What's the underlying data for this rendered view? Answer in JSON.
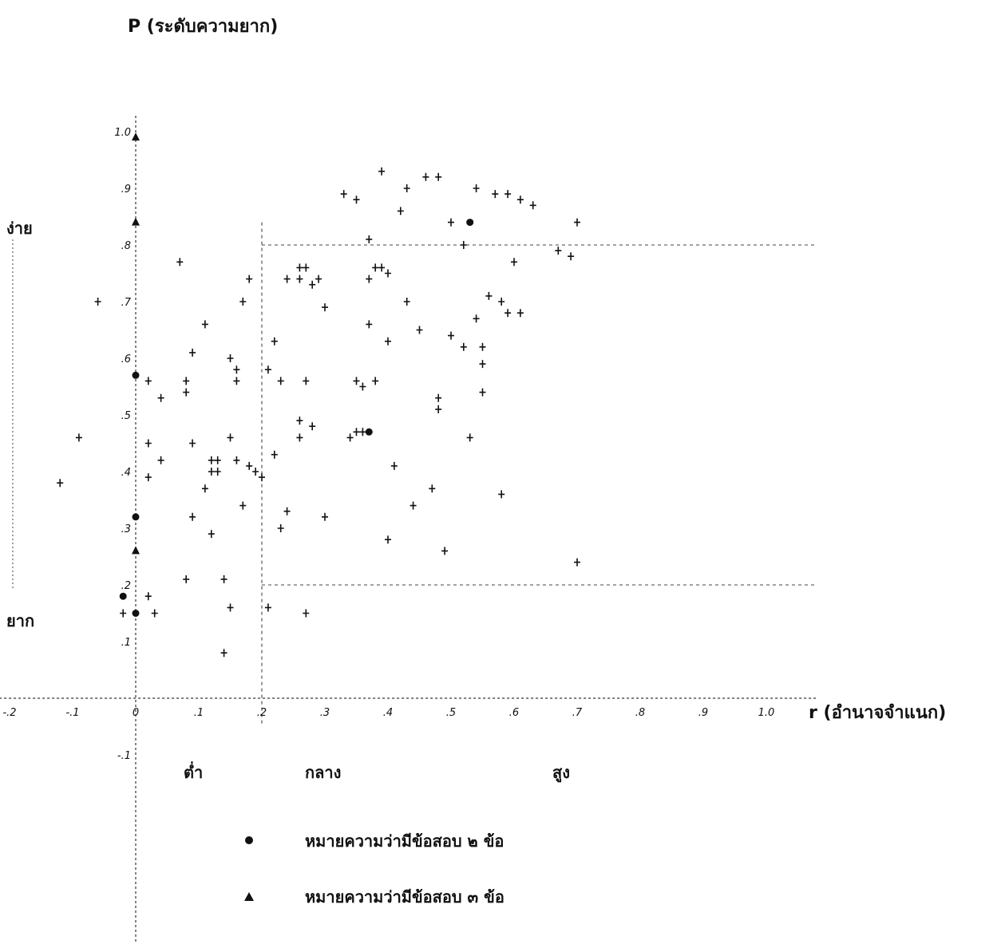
{
  "chart_data": {
    "type": "scatter",
    "xlabel": "r (อำนาจจำแนก)",
    "ylabel": "P (ระดับความยาก)",
    "x_ticks": [
      "-.2",
      "-.1",
      "0",
      ".1",
      ".2",
      ".3",
      ".4",
      ".5",
      ".6",
      ".7",
      ".8",
      ".9",
      "1.0"
    ],
    "y_ticks": [
      "1.0",
      ".9",
      ".8",
      ".7",
      ".6",
      ".5",
      ".4",
      ".3",
      ".2",
      ".1",
      "-.1"
    ],
    "xlim": [
      -0.21,
      1.08
    ],
    "ylim": [
      -0.1,
      1.0
    ],
    "grid": false,
    "guide_lines": {
      "x": [
        0.2
      ],
      "y": [
        0.2,
        0.8
      ]
    },
    "band_labels": {
      "top": "ง่าย",
      "bottom": "ยาก"
    },
    "x_band_labels": [
      "ต่ำ",
      "กลาง",
      "สูง"
    ],
    "legend": [
      {
        "symbol": "●",
        "text": "หมายความว่ามีข้อสอบ ๒ ข้อ"
      },
      {
        "symbol": "▲",
        "text": "หมายความว่ามีข้อสอบ ๓ ข้อ"
      }
    ],
    "points": [
      {
        "x": 0.39,
        "y": 0.93
      },
      {
        "x": 0.46,
        "y": 0.92
      },
      {
        "x": 0.48,
        "y": 0.92
      },
      {
        "x": 0.33,
        "y": 0.89
      },
      {
        "x": 0.35,
        "y": 0.88
      },
      {
        "x": 0.43,
        "y": 0.9
      },
      {
        "x": 0.54,
        "y": 0.9
      },
      {
        "x": 0.57,
        "y": 0.89
      },
      {
        "x": 0.59,
        "y": 0.89
      },
      {
        "x": 0.61,
        "y": 0.88
      },
      {
        "x": 0.63,
        "y": 0.87
      },
      {
        "x": 0.42,
        "y": 0.86
      },
      {
        "x": 0.5,
        "y": 0.84
      },
      {
        "x": 0.7,
        "y": 0.84
      },
      {
        "x": 0.37,
        "y": 0.81
      },
      {
        "x": 0.52,
        "y": 0.8
      },
      {
        "x": 0.67,
        "y": 0.79
      },
      {
        "x": 0.69,
        "y": 0.78
      },
      {
        "x": 0.6,
        "y": 0.77
      },
      {
        "x": 0.07,
        "y": 0.77
      },
      {
        "x": 0.26,
        "y": 0.76
      },
      {
        "x": 0.27,
        "y": 0.76
      },
      {
        "x": 0.38,
        "y": 0.76
      },
      {
        "x": 0.39,
        "y": 0.76
      },
      {
        "x": 0.4,
        "y": 0.75
      },
      {
        "x": 0.24,
        "y": 0.74
      },
      {
        "x": 0.26,
        "y": 0.74
      },
      {
        "x": 0.29,
        "y": 0.74
      },
      {
        "x": 0.28,
        "y": 0.73
      },
      {
        "x": 0.37,
        "y": 0.74
      },
      {
        "x": 0.18,
        "y": 0.74
      },
      {
        "x": -0.06,
        "y": 0.7
      },
      {
        "x": 0.17,
        "y": 0.7
      },
      {
        "x": 0.3,
        "y": 0.69
      },
      {
        "x": 0.43,
        "y": 0.7
      },
      {
        "x": 0.56,
        "y": 0.71
      },
      {
        "x": 0.58,
        "y": 0.7
      },
      {
        "x": 0.59,
        "y": 0.68
      },
      {
        "x": 0.61,
        "y": 0.68
      },
      {
        "x": 0.54,
        "y": 0.67
      },
      {
        "x": 0.11,
        "y": 0.66
      },
      {
        "x": 0.37,
        "y": 0.66
      },
      {
        "x": 0.45,
        "y": 0.65
      },
      {
        "x": 0.5,
        "y": 0.64
      },
      {
        "x": 0.4,
        "y": 0.63
      },
      {
        "x": 0.22,
        "y": 0.63
      },
      {
        "x": 0.52,
        "y": 0.62
      },
      {
        "x": 0.55,
        "y": 0.62
      },
      {
        "x": 0.09,
        "y": 0.61
      },
      {
        "x": 0.15,
        "y": 0.6
      },
      {
        "x": 0.21,
        "y": 0.58
      },
      {
        "x": 0.16,
        "y": 0.58
      },
      {
        "x": 0.55,
        "y": 0.59
      },
      {
        "x": 0.02,
        "y": 0.56
      },
      {
        "x": 0.08,
        "y": 0.56
      },
      {
        "x": 0.16,
        "y": 0.56
      },
      {
        "x": 0.23,
        "y": 0.56
      },
      {
        "x": 0.27,
        "y": 0.56
      },
      {
        "x": 0.35,
        "y": 0.56
      },
      {
        "x": 0.36,
        "y": 0.55
      },
      {
        "x": 0.38,
        "y": 0.56
      },
      {
        "x": 0.55,
        "y": 0.54
      },
      {
        "x": 0.08,
        "y": 0.54
      },
      {
        "x": 0.04,
        "y": 0.53
      },
      {
        "x": 0.48,
        "y": 0.53
      },
      {
        "x": 0.48,
        "y": 0.51
      },
      {
        "x": 0.26,
        "y": 0.49
      },
      {
        "x": 0.28,
        "y": 0.48
      },
      {
        "x": 0.35,
        "y": 0.47
      },
      {
        "x": 0.36,
        "y": 0.47
      },
      {
        "x": 0.34,
        "y": 0.46
      },
      {
        "x": -0.09,
        "y": 0.46
      },
      {
        "x": 0.15,
        "y": 0.46
      },
      {
        "x": 0.26,
        "y": 0.46
      },
      {
        "x": 0.53,
        "y": 0.46
      },
      {
        "x": 0.09,
        "y": 0.45
      },
      {
        "x": 0.02,
        "y": 0.45
      },
      {
        "x": 0.22,
        "y": 0.43
      },
      {
        "x": 0.04,
        "y": 0.42
      },
      {
        "x": 0.12,
        "y": 0.42
      },
      {
        "x": 0.13,
        "y": 0.42
      },
      {
        "x": 0.16,
        "y": 0.42
      },
      {
        "x": 0.18,
        "y": 0.41
      },
      {
        "x": 0.41,
        "y": 0.41
      },
      {
        "x": -0.12,
        "y": 0.38
      },
      {
        "x": 0.02,
        "y": 0.39
      },
      {
        "x": 0.12,
        "y": 0.4
      },
      {
        "x": 0.13,
        "y": 0.4
      },
      {
        "x": 0.19,
        "y": 0.4
      },
      {
        "x": 0.2,
        "y": 0.39
      },
      {
        "x": 0.11,
        "y": 0.37
      },
      {
        "x": 0.47,
        "y": 0.37
      },
      {
        "x": 0.58,
        "y": 0.36
      },
      {
        "x": 0.44,
        "y": 0.34
      },
      {
        "x": 0.17,
        "y": 0.34
      },
      {
        "x": 0.24,
        "y": 0.33
      },
      {
        "x": 0.09,
        "y": 0.32
      },
      {
        "x": 0.3,
        "y": 0.32
      },
      {
        "x": 0.23,
        "y": 0.3
      },
      {
        "x": 0.12,
        "y": 0.29
      },
      {
        "x": 0.4,
        "y": 0.28
      },
      {
        "x": 0.49,
        "y": 0.26
      },
      {
        "x": 0.7,
        "y": 0.24
      },
      {
        "x": 0.08,
        "y": 0.21
      },
      {
        "x": 0.14,
        "y": 0.21
      },
      {
        "x": 0.02,
        "y": 0.18
      },
      {
        "x": 0.03,
        "y": 0.15
      },
      {
        "x": 0.15,
        "y": 0.16
      },
      {
        "x": 0.21,
        "y": 0.16
      },
      {
        "x": 0.27,
        "y": 0.15
      },
      {
        "x": -0.02,
        "y": 0.15
      },
      {
        "x": 0.14,
        "y": 0.08
      }
    ],
    "double_points": [
      {
        "x": 0.53,
        "y": 0.84
      },
      {
        "x": 0.0,
        "y": 0.57
      },
      {
        "x": 0.37,
        "y": 0.47
      },
      {
        "x": 0.0,
        "y": 0.32
      },
      {
        "x": -0.02,
        "y": 0.18
      },
      {
        "x": 0.0,
        "y": 0.15
      }
    ],
    "triple_points": [
      {
        "x": 0.0,
        "y": 0.99
      },
      {
        "x": 0.0,
        "y": 0.84
      },
      {
        "x": 0.0,
        "y": 0.26
      }
    ]
  }
}
